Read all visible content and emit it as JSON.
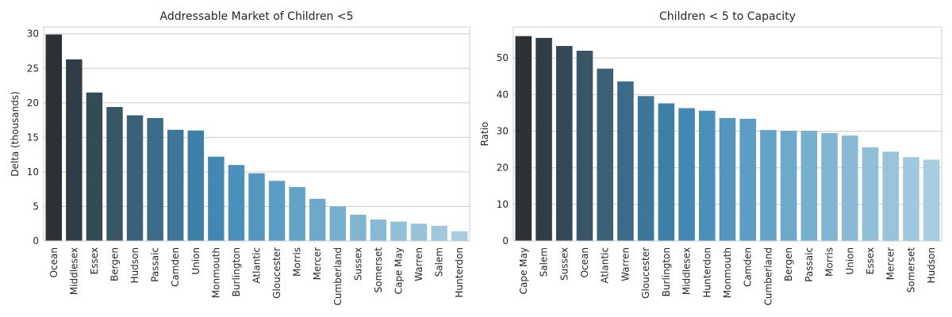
{
  "chart_data": [
    {
      "type": "bar",
      "title": "Addressable Market of Children <5",
      "xlabel": "",
      "ylabel": "Delta (thousands)",
      "ylim": [
        0,
        31
      ],
      "yticks": [
        0,
        5,
        10,
        15,
        20,
        25,
        30
      ],
      "grid": true,
      "categories": [
        "Ocean",
        "Middlesex",
        "Essex",
        "Bergen",
        "Hudson",
        "Passaic",
        "Camden",
        "Union",
        "Monmouth",
        "Burlington",
        "Atlantic",
        "Gloucester",
        "Morris",
        "Mercer",
        "Cumberland",
        "Sussex",
        "Somerset",
        "Cape May",
        "Warren",
        "Salem",
        "Hunterdon"
      ],
      "values": [
        29.9,
        26.3,
        21.5,
        19.4,
        18.2,
        17.8,
        16.1,
        16.0,
        12.2,
        11.0,
        9.8,
        8.7,
        7.8,
        6.1,
        5.0,
        3.8,
        3.1,
        2.8,
        2.5,
        2.2,
        1.4
      ],
      "colors": [
        "#2d3133",
        "#313d46",
        "#354a57",
        "#385667",
        "#3b6178",
        "#3c6b89",
        "#3d7699",
        "#3e7fa8",
        "#4388b5",
        "#4b8fbb",
        "#5396c0",
        "#5b9dc4",
        "#63a3c8",
        "#6ca9cb",
        "#76b0cf",
        "#80b5d2",
        "#88bad5",
        "#90bfd7",
        "#98c4da",
        "#a1c9dd",
        "#a8cde0"
      ]
    },
    {
      "type": "bar",
      "title": "Children < 5 to Capacity",
      "xlabel": "",
      "ylabel": "Ratio",
      "ylim": [
        0,
        58.5
      ],
      "yticks": [
        0,
        10,
        20,
        30,
        40,
        50
      ],
      "grid": true,
      "categories": [
        "Cape May",
        "Salem",
        "Sussex",
        "Ocean",
        "Atlantic",
        "Warren",
        "Gloucester",
        "Burlington",
        "Middlesex",
        "Hunterdon",
        "Monmouth",
        "Camden",
        "Cumberland",
        "Bergen",
        "Passaic",
        "Morris",
        "Union",
        "Essex",
        "Mercer",
        "Somerset",
        "Hudson"
      ],
      "values": [
        56.0,
        55.5,
        53.3,
        52.0,
        47.1,
        43.6,
        39.6,
        37.6,
        36.3,
        35.6,
        33.6,
        33.4,
        30.3,
        30.1,
        30.1,
        29.5,
        28.8,
        25.6,
        24.4,
        22.9,
        22.2
      ],
      "colors": [
        "#2d3133",
        "#313d46",
        "#354a57",
        "#385667",
        "#3b6178",
        "#3c6b89",
        "#3d7699",
        "#3e7fa8",
        "#4388b5",
        "#4b8fbb",
        "#5396c0",
        "#5b9dc4",
        "#63a3c8",
        "#6ca9cb",
        "#76b0cf",
        "#80b5d2",
        "#88bad5",
        "#90bfd7",
        "#98c4da",
        "#a1c9dd",
        "#a8cde0"
      ]
    }
  ]
}
